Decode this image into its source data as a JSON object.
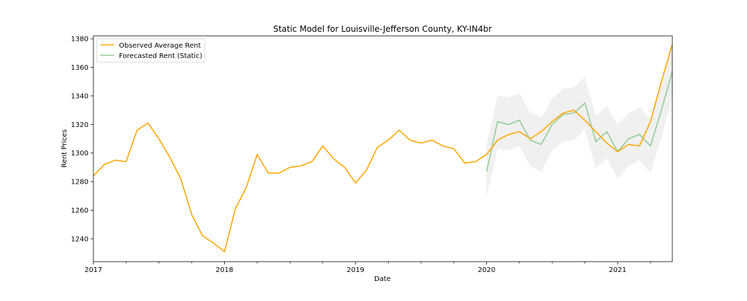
{
  "chart_data": {
    "type": "line",
    "title": "Static Model for Louisville-Jefferson County, KY-IN4br",
    "xlabel": "Date",
    "ylabel": "Rent Prices",
    "x_range": [
      "2017-01",
      "2021-06"
    ],
    "ylim": [
      1224,
      1382
    ],
    "y_ticks": [
      1240,
      1260,
      1280,
      1300,
      1320,
      1340,
      1360,
      1380
    ],
    "x_ticks": [
      {
        "date": "2017-01",
        "label": "2017"
      },
      {
        "date": "2018-01",
        "label": "2018"
      },
      {
        "date": "2019-01",
        "label": "2019"
      },
      {
        "date": "2020-01",
        "label": "2020"
      },
      {
        "date": "2021-01",
        "label": "2021"
      }
    ],
    "grid": false,
    "legend_position": "top-left",
    "series": [
      {
        "name": "Observed Average Rent",
        "color": "#FFA500",
        "x": [
          "2017-01",
          "2017-02",
          "2017-03",
          "2017-04",
          "2017-05",
          "2017-06",
          "2017-07",
          "2017-08",
          "2017-09",
          "2017-10",
          "2017-11",
          "2017-12",
          "2018-01",
          "2018-02",
          "2018-03",
          "2018-04",
          "2018-05",
          "2018-06",
          "2018-07",
          "2018-08",
          "2018-09",
          "2018-10",
          "2018-11",
          "2018-12",
          "2019-01",
          "2019-02",
          "2019-03",
          "2019-04",
          "2019-05",
          "2019-06",
          "2019-07",
          "2019-08",
          "2019-09",
          "2019-10",
          "2019-11",
          "2019-12",
          "2020-01",
          "2020-02",
          "2020-03",
          "2020-04",
          "2020-05",
          "2020-06",
          "2020-07",
          "2020-08",
          "2020-09",
          "2020-10",
          "2020-11",
          "2020-12",
          "2021-01",
          "2021-02",
          "2021-03",
          "2021-04",
          "2021-05",
          "2021-06"
        ],
        "values": [
          1284,
          1292,
          1295,
          1294,
          1316,
          1321,
          1310,
          1297,
          1282,
          1257,
          1242,
          1237,
          1231,
          1261,
          1276,
          1299,
          1286,
          1286,
          1290,
          1291,
          1294,
          1305,
          1296,
          1290,
          1279,
          1288,
          1304,
          1309,
          1316,
          1309,
          1307,
          1309,
          1305,
          1303,
          1293,
          1294,
          1299,
          1309,
          1313,
          1315,
          1310,
          1315,
          1322,
          1328,
          1330,
          1323,
          1315,
          1307,
          1301,
          1306,
          1305,
          1322,
          1350,
          1376
        ]
      },
      {
        "name": "Forecasted Rent (Static)",
        "color": "#8FCC8F",
        "x": [
          "2020-01",
          "2020-02",
          "2020-03",
          "2020-04",
          "2020-05",
          "2020-06",
          "2020-07",
          "2020-08",
          "2020-09",
          "2020-10",
          "2020-11",
          "2020-12",
          "2021-01",
          "2021-02",
          "2021-03",
          "2021-04",
          "2021-05",
          "2021-06"
        ],
        "values": [
          1287,
          1322,
          1320,
          1323,
          1309,
          1306,
          1320,
          1327,
          1328,
          1335,
          1308,
          1315,
          1301,
          1310,
          1313,
          1305,
          1330,
          1357
        ],
        "ci_lower": [
          1269,
          1303,
          1302,
          1305,
          1291,
          1287,
          1302,
          1308,
          1309,
          1317,
          1289,
          1296,
          1282,
          1291,
          1295,
          1286,
          1311,
          1338
        ],
        "ci_upper": [
          1306,
          1340,
          1339,
          1342,
          1328,
          1325,
          1338,
          1345,
          1346,
          1353,
          1326,
          1333,
          1320,
          1328,
          1332,
          1324,
          1348,
          1375
        ]
      }
    ]
  }
}
